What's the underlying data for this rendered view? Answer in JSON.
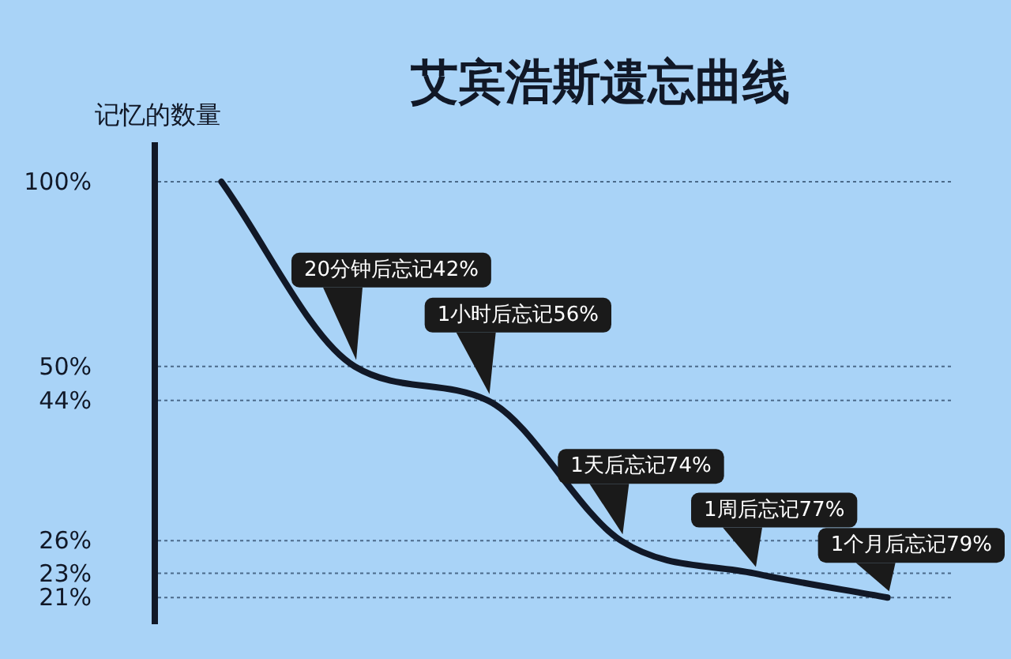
{
  "chart_data": {
    "type": "line",
    "title": "艾宾浩斯遗忘曲线",
    "ylabel": "记忆的数量",
    "categories": [
      null,
      null,
      null,
      null,
      null,
      null
    ],
    "series": [
      {
        "color": "#111827",
        "values": [
          100,
          50,
          44,
          26,
          23,
          21
        ]
      }
    ],
    "log": true,
    "ylim": [
      19,
      100
    ],
    "yticks": [
      {
        "value": 100,
        "label": "100%"
      },
      {
        "value": 50,
        "label": "50%"
      },
      {
        "value": 44,
        "label": "44%"
      },
      {
        "value": 26,
        "label": "26%"
      },
      {
        "value": 23,
        "label": "23%"
      },
      {
        "value": 21,
        "label": "21%"
      }
    ],
    "grid": "y",
    "line_style": "solid",
    "marker": "none",
    "annotations": [
      "20分钟后忘记42%",
      "1小时后忘记56%",
      "1天后忘记74%",
      "1周后忘记77%",
      "1个月后忘记79%"
    ]
  }
}
